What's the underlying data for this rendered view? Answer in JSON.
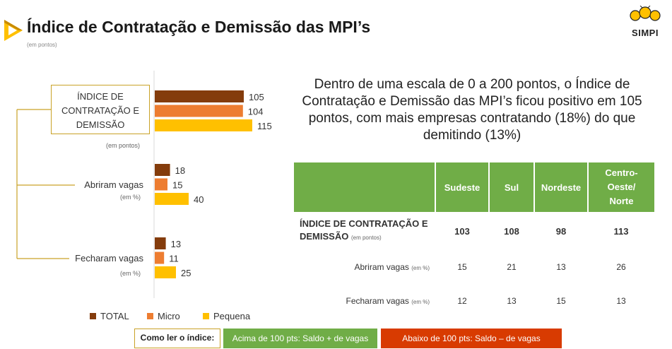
{
  "header": {
    "title": "Índice de Contratação e Demissão das MPI’s",
    "subtitle": "(em pontos)",
    "logo_text": "SIMPI"
  },
  "statement": "Dentro de uma escala de 0 a 200 pontos, o Índice de Contratação e Demissão das MPI’s ficou positivo em 105 pontos, com mais empresas contratando (18%) do que demitindo (13%)",
  "chart_data": {
    "type": "bar",
    "orientation": "horizontal",
    "categories": [
      "ÍNDICE DE CONTRATAÇÃO E DEMISSÃO",
      "Abriram vagas",
      "Fecharam vagas"
    ],
    "category_units": [
      "(em pontos)",
      "(em %)",
      "(em %)"
    ],
    "series": [
      {
        "name": "TOTAL",
        "color": "#843c0c",
        "values": [
          105,
          18,
          13
        ]
      },
      {
        "name": "Micro",
        "color": "#ed7d31",
        "values": [
          104,
          15,
          11
        ]
      },
      {
        "name": "Pequena",
        "color": "#ffc000",
        "values": [
          115,
          40,
          25
        ]
      }
    ],
    "xlim": [
      0,
      115
    ],
    "legend": "bottom",
    "grid": false
  },
  "table": {
    "headers": [
      "",
      "Sudeste",
      "Sul",
      "Nordeste",
      "Centro-Oeste/ Norte"
    ],
    "rows": [
      {
        "label": "ÍNDICE DE CONTRATAÇÃO E DEMISSÃO",
        "unit": "(em pontos)",
        "values": [
          "103",
          "108",
          "98",
          "113"
        ]
      },
      {
        "label": "Abriram vagas",
        "unit": "(em %)",
        "values": [
          "15",
          "21",
          "13",
          "26"
        ]
      },
      {
        "label": "Fecharam vagas",
        "unit": "(em %)",
        "values": [
          "12",
          "13",
          "15",
          "13"
        ]
      }
    ]
  },
  "footer": {
    "howto": "Como ler o índice:",
    "above": "Acima de 100 pts: Saldo + de vagas",
    "below": "Abaixo de 100 pts: Saldo – de vagas"
  },
  "colors": {
    "green": "#70ad47",
    "red": "#d83b01",
    "gold": "#c9a227"
  }
}
